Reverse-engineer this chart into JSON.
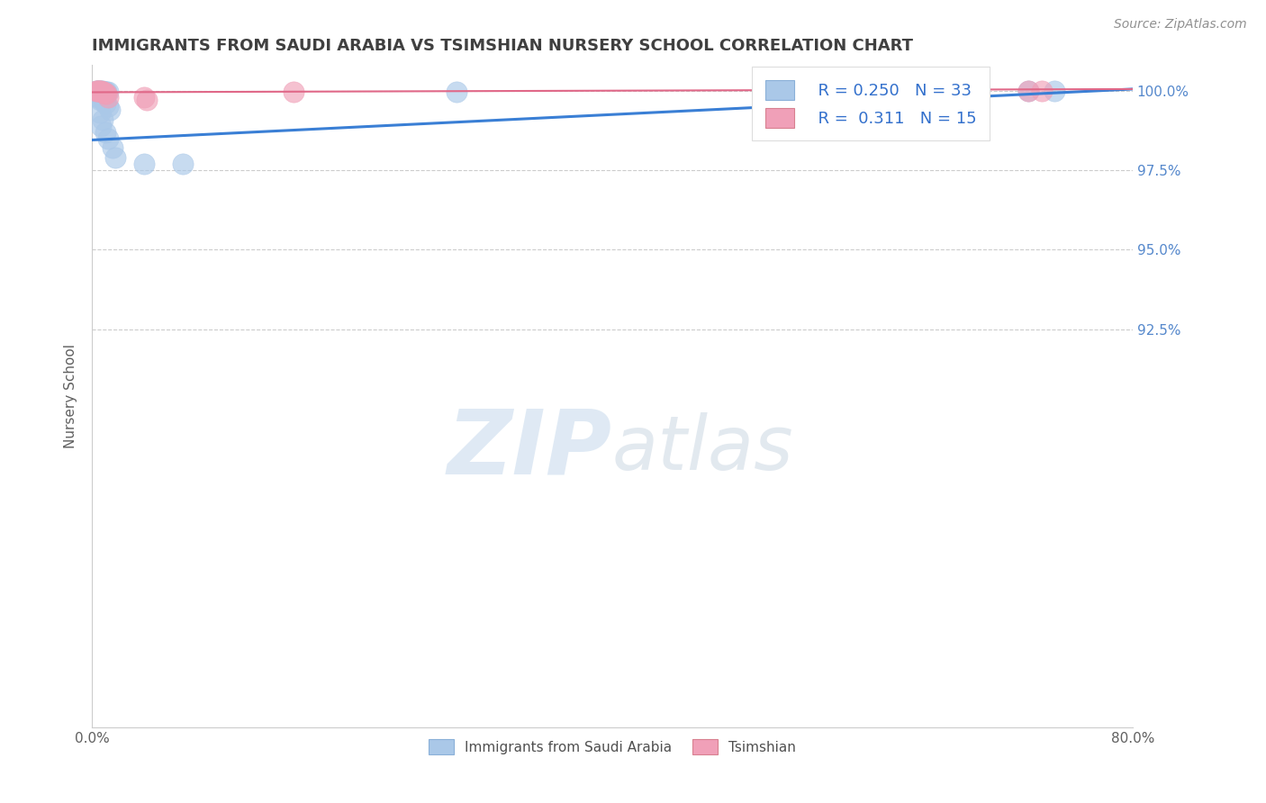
{
  "title": "IMMIGRANTS FROM SAUDI ARABIA VS TSIMSHIAN NURSERY SCHOOL CORRELATION CHART",
  "source": "Source: ZipAtlas.com",
  "ylabel": "Nursery School",
  "xlim": [
    0.0,
    0.8
  ],
  "ylim": [
    0.8,
    1.008
  ],
  "xtick_labels": [
    "0.0%",
    "80.0%"
  ],
  "xtick_positions": [
    0.0,
    0.8
  ],
  "ytick_labels": [
    "100.0%",
    "97.5%",
    "95.0%",
    "92.5%"
  ],
  "ytick_positions": [
    1.0,
    0.975,
    0.95,
    0.925
  ],
  "ytick_right_labels": [
    "100.0%",
    "97.5%",
    "95.0%",
    "92.5%"
  ],
  "legend_label_blue": "Immigrants from Saudi Arabia",
  "legend_label_pink": "Tsimshian",
  "legend_R_blue": "R = 0.250",
  "legend_N_blue": "N = 33",
  "legend_R_pink": "R =  0.311",
  "legend_N_pink": "N = 15",
  "blue_color": "#aac8e8",
  "pink_color": "#f0a0b8",
  "trend_blue": "#3a7fd5",
  "trend_pink": "#e06888",
  "watermark_zip": "ZIP",
  "watermark_atlas": "atlas",
  "background_color": "#ffffff",
  "grid_color": "#cccccc",
  "title_color": "#404040",
  "axis_color": "#606060",
  "tick_color": "#5588cc",
  "blue_scatter_x": [
    0.003,
    0.004,
    0.005,
    0.006,
    0.007,
    0.008,
    0.009,
    0.01,
    0.011,
    0.012,
    0.006,
    0.008,
    0.009,
    0.01,
    0.007,
    0.005,
    0.006,
    0.008,
    0.01,
    0.012,
    0.014,
    0.006,
    0.008,
    0.007,
    0.01,
    0.012,
    0.016,
    0.018,
    0.04,
    0.07,
    0.28,
    0.72,
    0.74
  ],
  "blue_scatter_y": [
    1.0,
    1.0,
    1.0,
    1.0,
    1.0,
    1.0,
    0.9995,
    0.9995,
    0.9995,
    0.9995,
    0.999,
    0.999,
    0.999,
    0.9985,
    0.9985,
    0.998,
    0.997,
    0.997,
    0.996,
    0.995,
    0.994,
    0.993,
    0.991,
    0.989,
    0.987,
    0.985,
    0.982,
    0.979,
    0.977,
    0.977,
    0.9995,
    1.0,
    1.0
  ],
  "pink_scatter_x": [
    0.003,
    0.004,
    0.005,
    0.006,
    0.007,
    0.008,
    0.009,
    0.01,
    0.011,
    0.012,
    0.04,
    0.042,
    0.155,
    0.72,
    0.73
  ],
  "pink_scatter_y": [
    1.0,
    1.0,
    1.0,
    1.0,
    1.0,
    0.9995,
    0.9995,
    0.999,
    0.999,
    0.998,
    0.998,
    0.997,
    0.9995,
    1.0,
    1.0
  ],
  "blue_trend_x0": 0.0,
  "blue_trend_y0": 0.9845,
  "blue_trend_x1": 0.8,
  "blue_trend_y1": 1.0005,
  "pink_trend_x0": 0.0,
  "pink_trend_y0": 0.9995,
  "pink_trend_x1": 0.8,
  "pink_trend_y1": 1.0005
}
